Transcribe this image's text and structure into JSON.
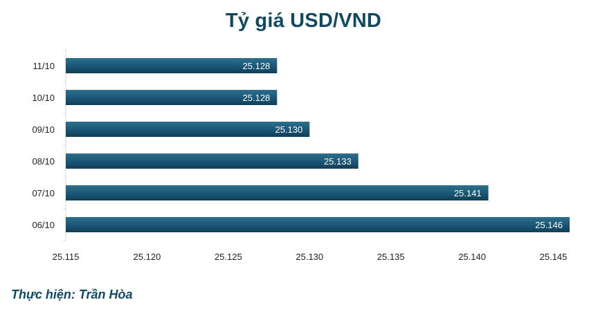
{
  "chart_data": {
    "type": "bar",
    "orientation": "horizontal",
    "title": "Tỷ giá USD/VND",
    "categories": [
      "11/10",
      "10/10",
      "09/10",
      "08/10",
      "07/10",
      "06/10"
    ],
    "values": [
      25.128,
      25.128,
      25.13,
      25.133,
      25.141,
      25.146
    ],
    "value_labels": [
      "25.128",
      "25.128",
      "25.130",
      "25.133",
      "25.141",
      "25.146"
    ],
    "xlim": [
      25.115,
      25.146
    ],
    "xticks": [
      25.115,
      25.12,
      25.125,
      25.13,
      25.135,
      25.14,
      25.145
    ],
    "xtick_labels": [
      "25.115",
      "25.120",
      "25.125",
      "25.130",
      "25.135",
      "25.140",
      "25.145"
    ],
    "grid": false,
    "bar_color": "#1c5878",
    "label_color": "#ffffff"
  },
  "credit": "Thực hiện: Trần Hòa"
}
